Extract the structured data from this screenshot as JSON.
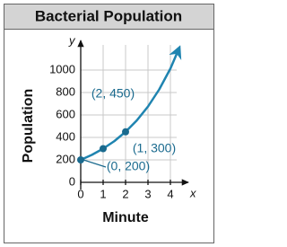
{
  "chart_data": {
    "type": "line",
    "title": "Bacterial Population",
    "xlabel": "Minute",
    "ylabel": "Population",
    "x_symbol": "x",
    "y_symbol": "y",
    "xlim": [
      0,
      4.6
    ],
    "xticks": [
      0,
      1,
      2,
      3,
      4
    ],
    "ylim": [
      0,
      1300
    ],
    "yticks": [
      0,
      200,
      400,
      600,
      800,
      1000
    ],
    "grid": true,
    "series": [
      {
        "name": "curve",
        "color": "#1f84b0",
        "x": [
          0,
          0.5,
          1,
          1.5,
          2,
          2.5,
          3,
          3.5,
          4,
          4.4
        ],
        "values": [
          200,
          245,
          300,
          367,
          450,
          551,
          675,
          827,
          1013,
          1200
        ]
      },
      {
        "name": "points",
        "color": "#1a6a8e",
        "x": [
          0,
          1,
          2
        ],
        "values": [
          200,
          300,
          450
        ],
        "value_labels": [
          "(0, 200)",
          "(1, 300)",
          "(2, 450)"
        ]
      }
    ]
  }
}
